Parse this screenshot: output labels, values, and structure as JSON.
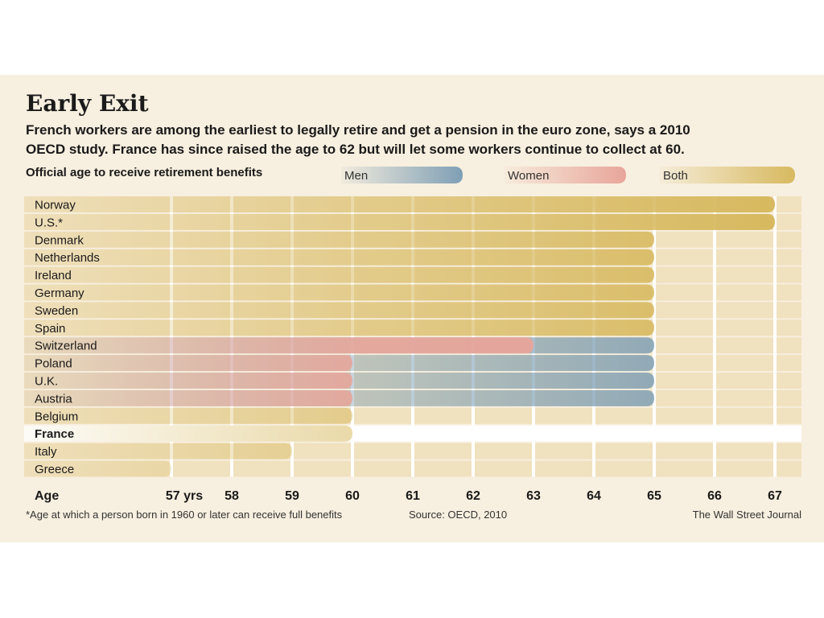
{
  "header": {
    "title": "Early Exit",
    "subtitle_line1": "French workers are among the earliest to legally retire and get a pension in the euro zone, says a 2010",
    "subtitle_line2": "OECD study. France has since raised the age to 62 but will let some workers continue to collect at 60.",
    "chart_label": "Official age to receive retirement benefits"
  },
  "footer": {
    "footnote": "*Age at which a person born in 1960 or later can receive full benefits",
    "source": "Source: OECD, 2010",
    "credit": "The Wall Street Journal"
  },
  "colors": {
    "men": "#7f9fb5",
    "women": "#e8a59a",
    "both": "#d7b95f",
    "background": "#f7efdf",
    "stripe": "#f0e1bf"
  },
  "chart_data": {
    "type": "bar",
    "orientation": "horizontal",
    "x_axis_title": "Age",
    "tick_labels": [
      "57 yrs",
      "58",
      "59",
      "60",
      "61",
      "62",
      "63",
      "64",
      "65",
      "66",
      "67"
    ],
    "xlim": [
      57,
      67
    ],
    "highlight": "France",
    "legend": {
      "position": "top",
      "entries": [
        "Men",
        "Women",
        "Both"
      ]
    },
    "categories": [
      "Norway",
      "U.S.*",
      "Denmark",
      "Netherlands",
      "Ireland",
      "Germany",
      "Sweden",
      "Spain",
      "Switzerland",
      "Poland",
      "U.K.",
      "Austria",
      "Belgium",
      "France",
      "Italy",
      "Greece"
    ],
    "series": [
      {
        "name": "Men",
        "values": [
          67,
          67,
          65,
          65,
          65,
          65,
          65,
          65,
          65,
          65,
          65,
          65,
          60,
          60,
          59,
          57
        ]
      },
      {
        "name": "Women",
        "values": [
          67,
          67,
          65,
          65,
          65,
          65,
          65,
          65,
          63,
          60,
          60,
          60,
          60,
          60,
          59,
          57
        ]
      }
    ]
  }
}
